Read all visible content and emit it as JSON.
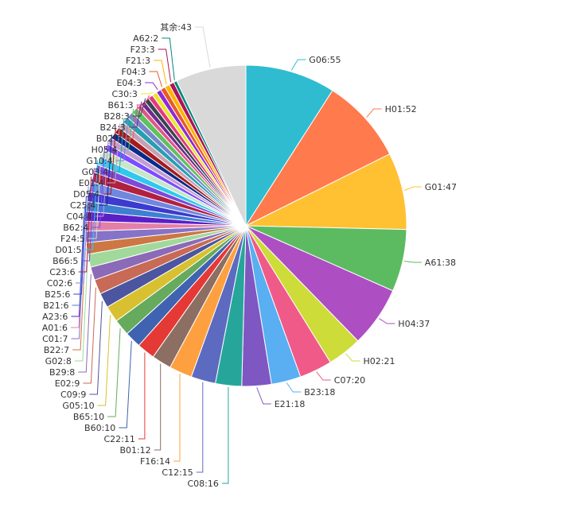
{
  "chart_data": {
    "type": "pie",
    "title": "",
    "label_separator": ":",
    "slices": [
      {
        "name": "G06",
        "value": 55,
        "color": "#2fbcd0"
      },
      {
        "name": "H01",
        "value": 52,
        "color": "#ff7a4c"
      },
      {
        "name": "G01",
        "value": 47,
        "color": "#ffc132"
      },
      {
        "name": "A61",
        "value": 38,
        "color": "#5cbb60"
      },
      {
        "name": "H04",
        "value": 37,
        "color": "#ae4ec3"
      },
      {
        "name": "H02",
        "value": 21,
        "color": "#cddc39"
      },
      {
        "name": "C07",
        "value": 20,
        "color": "#f05a89"
      },
      {
        "name": "B23",
        "value": 18,
        "color": "#5aaef2"
      },
      {
        "name": "E21",
        "value": 18,
        "color": "#7e57c2"
      },
      {
        "name": "C08",
        "value": 16,
        "color": "#26a69a"
      },
      {
        "name": "C12",
        "value": 15,
        "color": "#5c6bc0"
      },
      {
        "name": "F16",
        "value": 14,
        "color": "#ffa040"
      },
      {
        "name": "B01",
        "value": 12,
        "color": "#8d6e63"
      },
      {
        "name": "C22",
        "value": 11,
        "color": "#e53935"
      },
      {
        "name": "B60",
        "value": 10,
        "color": "#3f63b0"
      },
      {
        "name": "B65",
        "value": 10,
        "color": "#66aa5e"
      },
      {
        "name": "G05",
        "value": 10,
        "color": "#d9c030"
      },
      {
        "name": "C09",
        "value": 9,
        "color": "#4b55a0"
      },
      {
        "name": "E02",
        "value": 9,
        "color": "#c86a55"
      },
      {
        "name": "B29",
        "value": 8,
        "color": "#8b6ab8"
      },
      {
        "name": "G02",
        "value": 8,
        "color": "#a1d99b"
      },
      {
        "name": "B22",
        "value": 7,
        "color": "#cc7744"
      },
      {
        "name": "C01",
        "value": 7,
        "color": "#8573c8"
      },
      {
        "name": "A01",
        "value": 6,
        "color": "#e480a8"
      },
      {
        "name": "A23",
        "value": 6,
        "color": "#5a1fc7"
      },
      {
        "name": "B21",
        "value": 6,
        "color": "#3f7fd0"
      },
      {
        "name": "B25",
        "value": 6,
        "color": "#3b3bd0"
      },
      {
        "name": "C02",
        "value": 6,
        "color": "#7086df"
      },
      {
        "name": "C23",
        "value": 6,
        "color": "#b22040"
      },
      {
        "name": "B66",
        "value": 5,
        "color": "#7b4bd9"
      },
      {
        "name": "D01",
        "value": 5,
        "color": "#2fc9ef"
      },
      {
        "name": "F24",
        "value": 5,
        "color": "#c8e6c9"
      },
      {
        "name": "B62",
        "value": 4,
        "color": "#7c4dff"
      },
      {
        "name": "C04",
        "value": 4,
        "color": "#c49dd0"
      },
      {
        "name": "C25",
        "value": 4,
        "color": "#0a2a8c"
      },
      {
        "name": "D05",
        "value": 4,
        "color": "#a51c1c"
      },
      {
        "name": "E01",
        "value": 4,
        "color": "#c8a0b4"
      },
      {
        "name": "G03",
        "value": 4,
        "color": "#26a0b0"
      },
      {
        "name": "G10",
        "value": 4,
        "color": "#7986cb"
      },
      {
        "name": "H05",
        "value": 4,
        "color": "#5ec25e"
      },
      {
        "name": "B02",
        "value": 3,
        "color": "#e0568a"
      },
      {
        "name": "B24",
        "value": 3,
        "color": "#6f2b8c"
      },
      {
        "name": "B28",
        "value": 3,
        "color": "#37474f"
      },
      {
        "name": "B61",
        "value": 3,
        "color": "#e53980"
      },
      {
        "name": "C30",
        "value": 3,
        "color": "#e8e82a"
      },
      {
        "name": "E04",
        "value": 3,
        "color": "#8e2ad8"
      },
      {
        "name": "F04",
        "value": 3,
        "color": "#e85a2a"
      },
      {
        "name": "F21",
        "value": 3,
        "color": "#ffb300"
      },
      {
        "name": "F23",
        "value": 3,
        "color": "#ad1457"
      },
      {
        "name": "A62",
        "value": 2,
        "color": "#00897b"
      },
      {
        "name": "其余",
        "value": 43,
        "color": "#d9d9d9"
      }
    ]
  }
}
